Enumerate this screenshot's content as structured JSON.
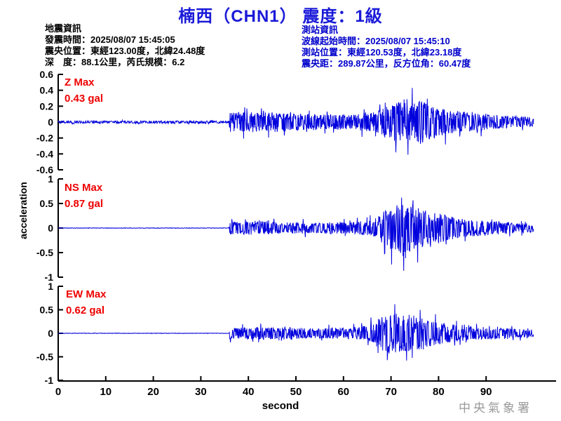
{
  "title": "楠西（CHN1） 震度：1級",
  "quake_info": {
    "heading": "地震資訊",
    "origin_time": "發震時間：2025/08/07 15:45:05",
    "epicenter": "震央位置：東經123.00度，北緯24.48度",
    "depth_magnitude": "深　度：88.1公里，芮氏規模：6.2"
  },
  "station_info": {
    "heading": "測站資訊",
    "record_start": "波線起始時間：2025/08/07 15:45:10",
    "station_location": "測站位置：東經120.53度，北緯23.18度",
    "distance_azimuth": "震央距：289.87公里，反方位角：60.47度"
  },
  "watermark": "中央氣象署",
  "colors": {
    "title": "#1a1ad9",
    "info_text": "#000000",
    "station_text": "#0000cc",
    "max_label": "#ee0000",
    "trace": "#0000dd",
    "axis": "#000000",
    "watermark": "#9a9a9a"
  },
  "chart_data": {
    "type": "line",
    "xlabel": "second",
    "ylabel": "acceleration",
    "x_ticks": [
      0,
      10,
      20,
      30,
      40,
      50,
      60,
      70,
      80,
      90
    ],
    "x_range": [
      0,
      105
    ],
    "grid": false,
    "legend": "none",
    "traces": [
      {
        "name": "Z",
        "max_label": "Z Max",
        "max_value_label": "0.43 gal",
        "max_gal": 0.43,
        "ylim": [
          -0.6,
          0.6
        ],
        "y_ticks": [
          0.6,
          0.4,
          0.2,
          0,
          -0.2,
          -0.4,
          -0.6
        ],
        "p_onset_sec": 36.1,
        "s_peak_sec": 74,
        "end_sec": 100,
        "seed": 20250807,
        "envelope": [
          [
            0,
            0.015
          ],
          [
            35.9,
            0.015
          ],
          [
            36.1,
            0.13
          ],
          [
            44,
            0.13
          ],
          [
            54,
            0.1
          ],
          [
            62,
            0.1
          ],
          [
            67,
            0.13
          ],
          [
            70,
            0.22
          ],
          [
            73,
            0.3
          ],
          [
            76,
            0.28
          ],
          [
            79,
            0.2
          ],
          [
            83,
            0.14
          ],
          [
            88,
            0.11
          ],
          [
            94,
            0.08
          ],
          [
            100,
            0.06
          ]
        ],
        "spikes": [
          {
            "t": 74.5,
            "v": 0.43
          },
          {
            "t": 73.6,
            "v": -0.41
          }
        ]
      },
      {
        "name": "NS",
        "max_label": "NS Max",
        "max_value_label": "0.87 gal",
        "max_gal": 0.87,
        "ylim": [
          -1,
          1
        ],
        "y_ticks": [
          1,
          0.5,
          0,
          -0.5,
          -1
        ],
        "p_onset_sec": 36.1,
        "s_peak_sec": 72.7,
        "end_sec": 100,
        "seed": 154510,
        "envelope": [
          [
            0,
            0.004
          ],
          [
            35.9,
            0.004
          ],
          [
            36.1,
            0.13
          ],
          [
            42,
            0.14
          ],
          [
            50,
            0.11
          ],
          [
            60,
            0.12
          ],
          [
            66,
            0.15
          ],
          [
            68,
            0.3
          ],
          [
            70,
            0.45
          ],
          [
            72,
            0.52
          ],
          [
            74,
            0.48
          ],
          [
            76,
            0.42
          ],
          [
            79,
            0.33
          ],
          [
            82,
            0.25
          ],
          [
            86,
            0.18
          ],
          [
            92,
            0.13
          ],
          [
            100,
            0.09
          ]
        ],
        "spikes": [
          {
            "t": 72.7,
            "v": -0.87
          },
          {
            "t": 72.2,
            "v": 0.62
          },
          {
            "t": 75.6,
            "v": -0.7
          }
        ]
      },
      {
        "name": "EW",
        "max_label": "EW Max",
        "max_value_label": "0.62 gal",
        "max_gal": 0.62,
        "ylim": [
          -1,
          1
        ],
        "y_ticks": [
          1,
          0.5,
          0,
          -0.5,
          -1
        ],
        "p_onset_sec": 36.1,
        "s_peak_sec": 70.8,
        "end_sec": 100,
        "seed": 62062,
        "envelope": [
          [
            0,
            0.004
          ],
          [
            35.9,
            0.004
          ],
          [
            36.1,
            0.12
          ],
          [
            44,
            0.13
          ],
          [
            52,
            0.11
          ],
          [
            62,
            0.12
          ],
          [
            66,
            0.2
          ],
          [
            68,
            0.38
          ],
          [
            70,
            0.45
          ],
          [
            72,
            0.42
          ],
          [
            75,
            0.38
          ],
          [
            78,
            0.28
          ],
          [
            82,
            0.2
          ],
          [
            86,
            0.15
          ],
          [
            92,
            0.12
          ],
          [
            100,
            0.08
          ]
        ],
        "spikes": [
          {
            "t": 70.8,
            "v": 0.62
          },
          {
            "t": 73.3,
            "v": -0.58
          }
        ]
      }
    ]
  }
}
